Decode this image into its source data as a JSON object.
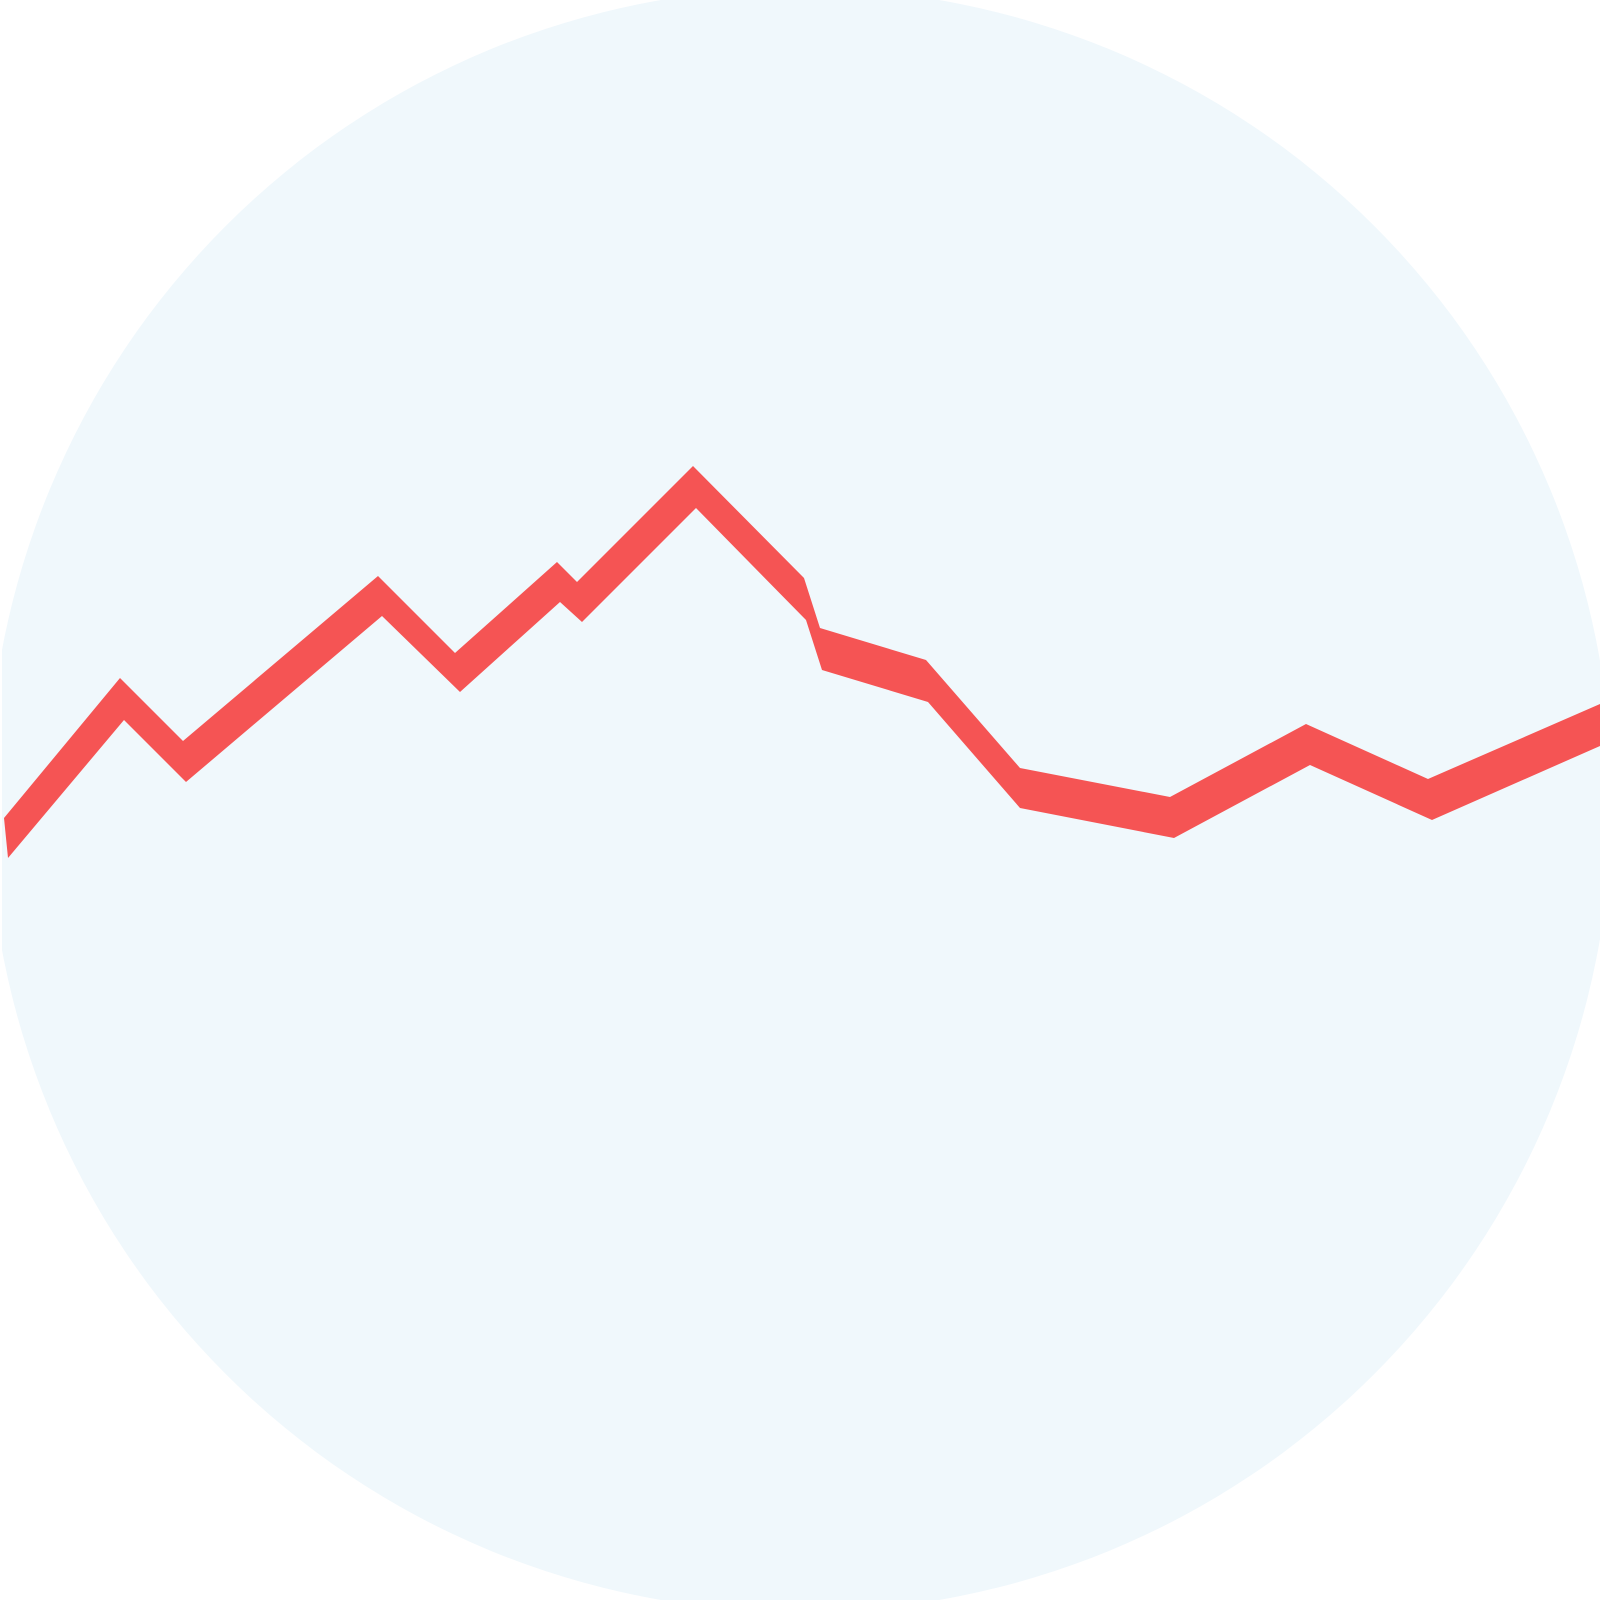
{
  "icon": {
    "name": "trend-line-chart-icon",
    "background_color": "#f0f8fc",
    "line_color": "#f55454"
  }
}
